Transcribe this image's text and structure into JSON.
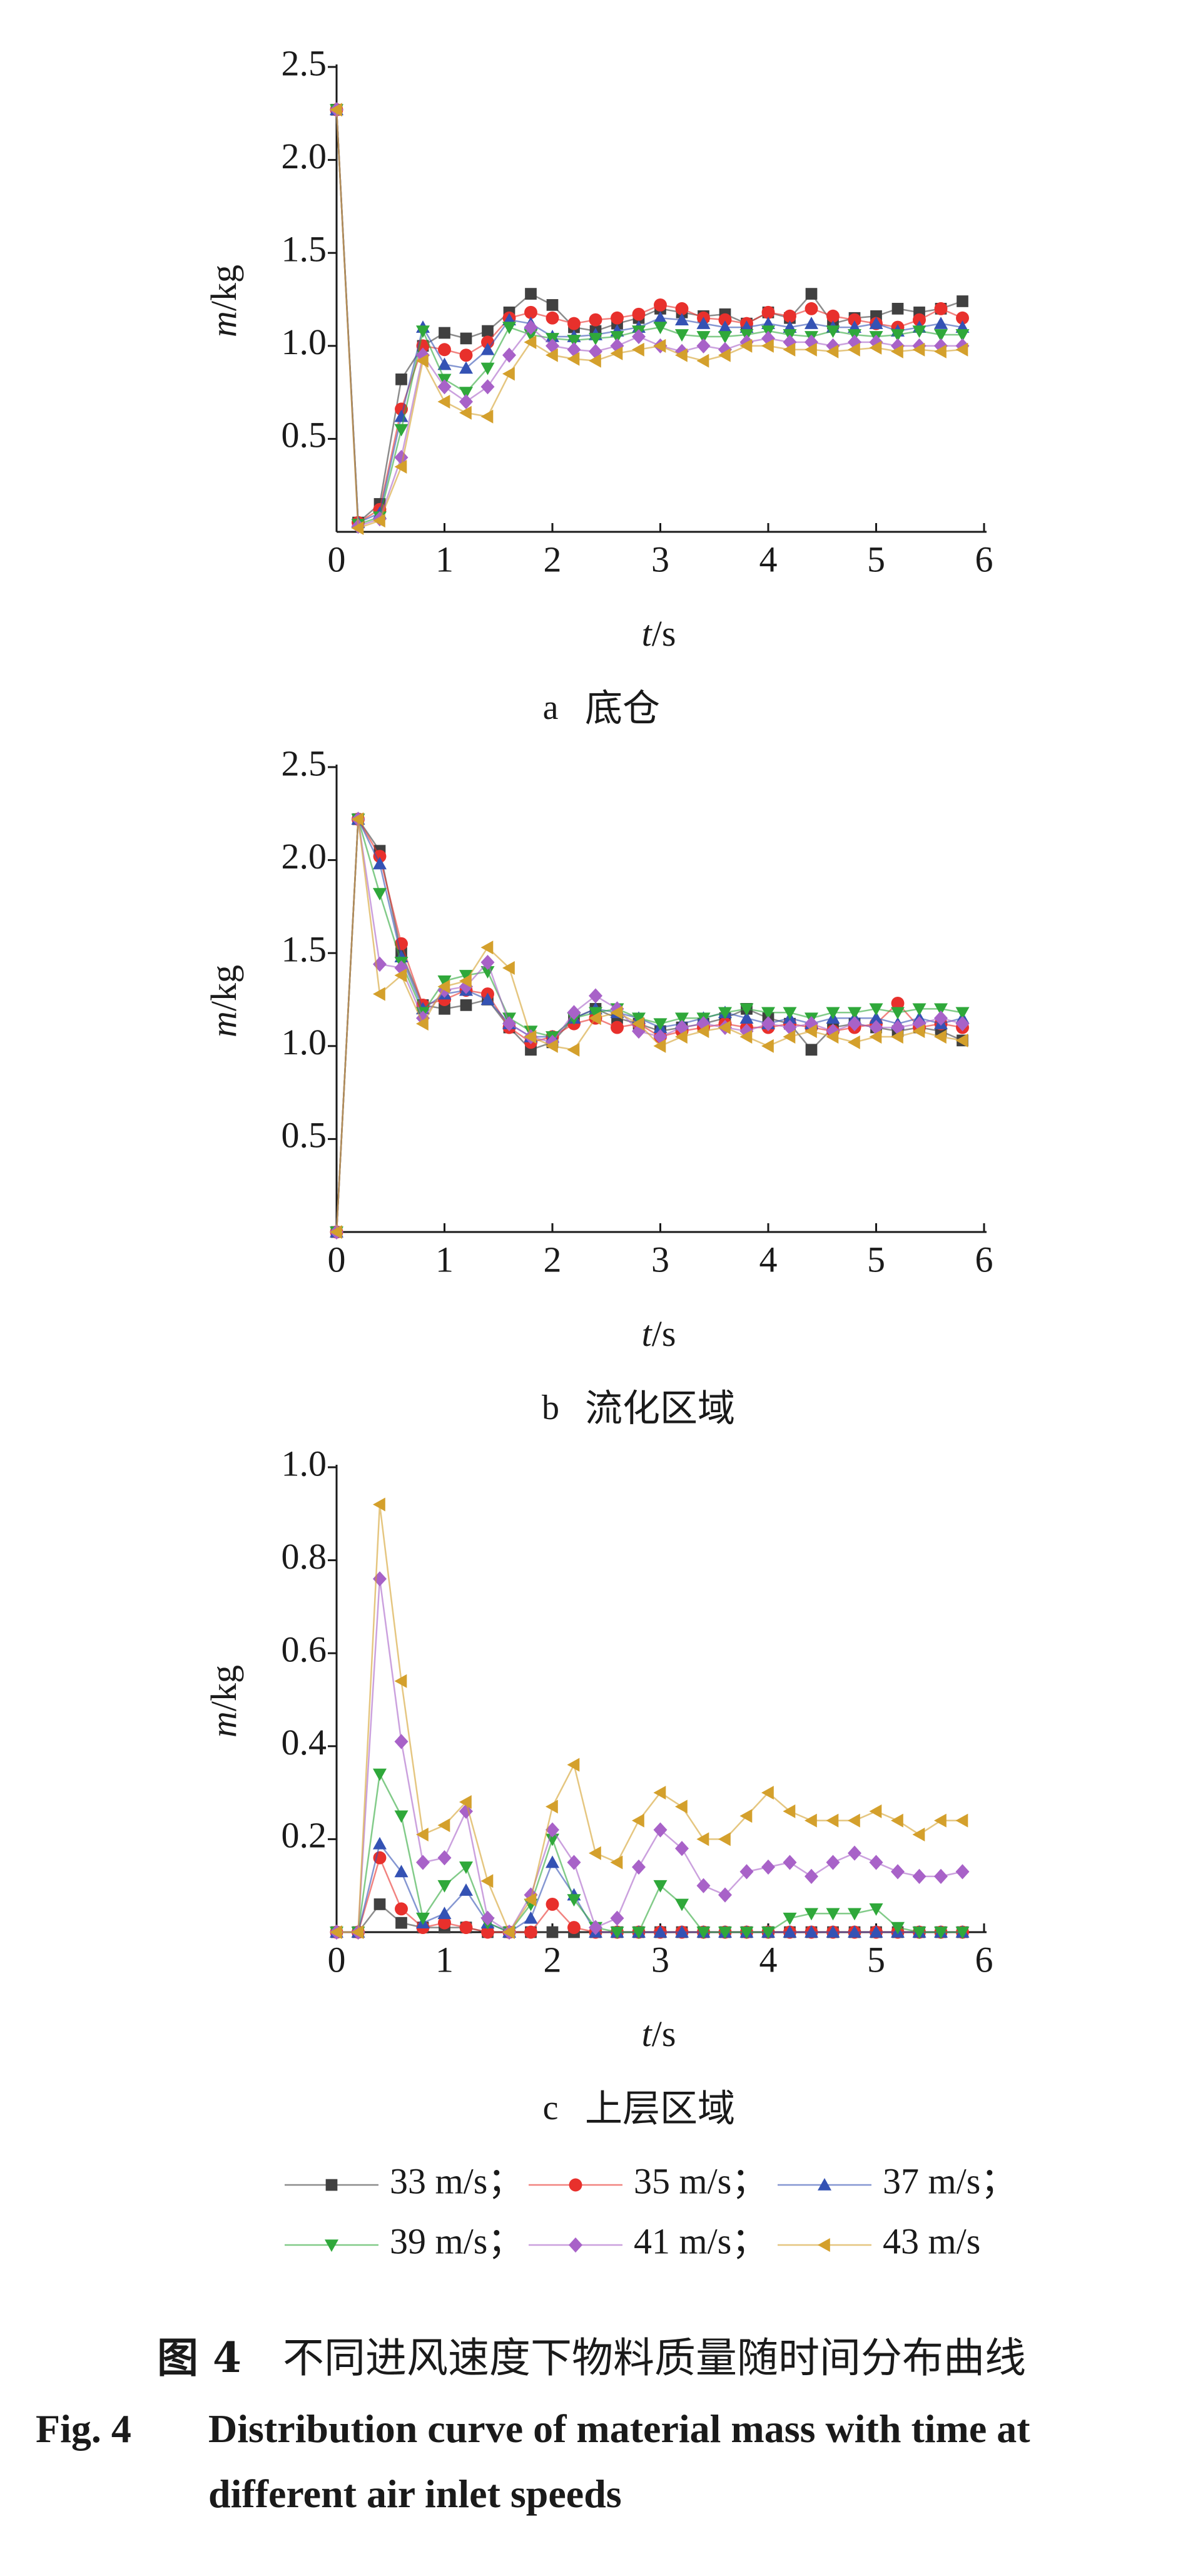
{
  "legend": {
    "separator": "；",
    "items": [
      {
        "name": "33 m/s",
        "color": "#404040",
        "marker": "square"
      },
      {
        "name": "35 m/s",
        "color": "#e8302c",
        "marker": "circle"
      },
      {
        "name": "37 m/s",
        "color": "#3452b4",
        "marker": "triangle-up"
      },
      {
        "name": "39 m/s",
        "color": "#2fa83a",
        "marker": "triangle-down"
      },
      {
        "name": "41 m/s",
        "color": "#a862c8",
        "marker": "diamond"
      },
      {
        "name": "43 m/s",
        "color": "#d4a02c",
        "marker": "triangle-left"
      }
    ]
  },
  "chart_data": [
    {
      "type": "line",
      "label": "a",
      "subtitle": "底仓",
      "xlabel": "t/s",
      "ylabel": "m/kg",
      "x": [
        0,
        0.2,
        0.4,
        0.6,
        0.8,
        1,
        1.2,
        1.4,
        1.6,
        1.8,
        2,
        2.2,
        2.4,
        2.6,
        2.8,
        3,
        3.2,
        3.4,
        3.6,
        3.8,
        4,
        4.2,
        4.4,
        4.6,
        4.8,
        5,
        5.2,
        5.4,
        5.6,
        5.8
      ],
      "xlim": [
        0,
        6
      ],
      "xticks": [
        0,
        1,
        2,
        3,
        4,
        5,
        6
      ],
      "ylim": [
        0,
        2.5
      ],
      "yticks": [
        0.5,
        {
          "value": 1,
          "label": "1.0"
        },
        1.5,
        {
          "value": 2,
          "label": "2.0"
        },
        2.5
      ],
      "series": [
        {
          "values": [
            2.27,
            0.05,
            0.15,
            0.82,
            1.0,
            1.07,
            1.04,
            1.08,
            1.18,
            1.28,
            1.22,
            1.1,
            1.08,
            1.12,
            1.15,
            1.2,
            1.18,
            1.16,
            1.17,
            1.12,
            1.18,
            1.15,
            1.28,
            1.12,
            1.15,
            1.16,
            1.2,
            1.18,
            1.2,
            1.24
          ]
        },
        {
          "values": [
            2.27,
            0.05,
            0.12,
            0.66,
            1.0,
            0.98,
            0.95,
            1.02,
            1.15,
            1.18,
            1.15,
            1.12,
            1.14,
            1.15,
            1.17,
            1.22,
            1.2,
            1.15,
            1.14,
            1.12,
            1.18,
            1.16,
            1.2,
            1.16,
            1.14,
            1.12,
            1.1,
            1.14,
            1.2,
            1.15
          ]
        },
        {
          "values": [
            2.27,
            0.05,
            0.1,
            0.62,
            1.1,
            0.9,
            0.88,
            0.98,
            1.14,
            1.12,
            1.05,
            1.05,
            1.06,
            1.08,
            1.1,
            1.15,
            1.14,
            1.12,
            1.1,
            1.1,
            1.12,
            1.1,
            1.12,
            1.1,
            1.1,
            1.12,
            1.08,
            1.1,
            1.12,
            1.1
          ]
        },
        {
          "values": [
            2.27,
            0.04,
            0.08,
            0.55,
            1.08,
            0.82,
            0.75,
            0.88,
            1.1,
            1.06,
            1.04,
            1.03,
            1.04,
            1.05,
            1.08,
            1.1,
            1.06,
            1.05,
            1.05,
            1.06,
            1.08,
            1.06,
            1.05,
            1.08,
            1.06,
            1.05,
            1.06,
            1.08,
            1.06,
            1.06
          ]
        },
        {
          "values": [
            2.27,
            0.03,
            0.07,
            0.4,
            0.95,
            0.78,
            0.7,
            0.78,
            0.95,
            1.1,
            1.0,
            0.98,
            0.97,
            1.0,
            1.05,
            1.0,
            0.97,
            1.0,
            0.98,
            1.02,
            1.04,
            1.02,
            1.02,
            1.0,
            1.02,
            1.02,
            1.0,
            1.0,
            1.0,
            1.0
          ]
        },
        {
          "values": [
            2.27,
            0.02,
            0.06,
            0.35,
            0.92,
            0.7,
            0.64,
            0.62,
            0.85,
            1.02,
            0.95,
            0.93,
            0.92,
            0.96,
            0.98,
            1.0,
            0.95,
            0.92,
            0.95,
            1.0,
            1.0,
            0.98,
            0.98,
            0.97,
            0.98,
            0.99,
            0.97,
            0.98,
            0.97,
            0.98
          ]
        }
      ]
    },
    {
      "type": "line",
      "label": "b",
      "subtitle": "流化区域",
      "xlabel": "t/s",
      "ylabel": "m/kg",
      "x": [
        0,
        0.2,
        0.4,
        0.6,
        0.8,
        1,
        1.2,
        1.4,
        1.6,
        1.8,
        2,
        2.2,
        2.4,
        2.6,
        2.8,
        3,
        3.2,
        3.4,
        3.6,
        3.8,
        4,
        4.2,
        4.4,
        4.6,
        4.8,
        5,
        5.2,
        5.4,
        5.6,
        5.8
      ],
      "xlim": [
        0,
        6
      ],
      "xticks": [
        0,
        1,
        2,
        3,
        4,
        5,
        6
      ],
      "ylim": [
        0,
        2.5
      ],
      "yticks": [
        0.5,
        {
          "value": 1,
          "label": "1.0"
        },
        1.5,
        {
          "value": 2,
          "label": "2.0"
        },
        2.5
      ],
      "series": [
        {
          "values": [
            0,
            2.22,
            2.05,
            1.5,
            1.22,
            1.2,
            1.22,
            1.25,
            1.1,
            0.98,
            1.02,
            1.15,
            1.2,
            1.15,
            1.12,
            1.08,
            1.1,
            1.12,
            1.15,
            1.2,
            1.15,
            1.12,
            0.98,
            1.1,
            1.12,
            1.1,
            1.08,
            1.1,
            1.08,
            1.03
          ]
        },
        {
          "values": [
            0,
            2.22,
            2.02,
            1.55,
            1.22,
            1.25,
            1.3,
            1.28,
            1.1,
            1.02,
            1.05,
            1.12,
            1.15,
            1.1,
            1.12,
            1.05,
            1.08,
            1.1,
            1.12,
            1.1,
            1.1,
            1.12,
            1.1,
            1.08,
            1.1,
            1.12,
            1.23,
            1.1,
            1.12,
            1.1
          ]
        },
        {
          "values": [
            0,
            2.22,
            1.98,
            1.48,
            1.2,
            1.28,
            1.3,
            1.25,
            1.12,
            1.05,
            1.05,
            1.15,
            1.2,
            1.18,
            1.15,
            1.1,
            1.12,
            1.15,
            1.18,
            1.15,
            1.12,
            1.15,
            1.12,
            1.15,
            1.15,
            1.15,
            1.12,
            1.15,
            1.12,
            1.15
          ]
        },
        {
          "values": [
            0,
            2.22,
            1.82,
            1.45,
            1.18,
            1.35,
            1.38,
            1.4,
            1.15,
            1.08,
            1.05,
            1.15,
            1.18,
            1.2,
            1.15,
            1.12,
            1.15,
            1.15,
            1.18,
            1.2,
            1.18,
            1.18,
            1.15,
            1.18,
            1.18,
            1.2,
            1.18,
            1.2,
            1.2,
            1.18
          ]
        },
        {
          "values": [
            0,
            2.22,
            1.44,
            1.42,
            1.15,
            1.3,
            1.32,
            1.45,
            1.12,
            1.05,
            1.02,
            1.18,
            1.27,
            1.2,
            1.08,
            1.05,
            1.1,
            1.12,
            1.1,
            1.08,
            1.12,
            1.1,
            1.12,
            1.08,
            1.12,
            1.1,
            1.1,
            1.12,
            1.15,
            1.12
          ]
        },
        {
          "values": [
            0,
            2.22,
            1.28,
            1.38,
            1.12,
            1.32,
            1.35,
            1.53,
            1.42,
            1.05,
            1.0,
            0.98,
            1.15,
            1.18,
            1.12,
            1.0,
            1.05,
            1.08,
            1.1,
            1.05,
            1.0,
            1.05,
            1.08,
            1.05,
            1.02,
            1.05,
            1.05,
            1.08,
            1.05,
            1.03
          ]
        }
      ]
    },
    {
      "type": "line",
      "label": "c",
      "subtitle": "上层区域",
      "xlabel": "t/s",
      "ylabel": "m/kg",
      "x": [
        0,
        0.2,
        0.4,
        0.6,
        0.8,
        1,
        1.2,
        1.4,
        1.6,
        1.8,
        2,
        2.2,
        2.4,
        2.6,
        2.8,
        3,
        3.2,
        3.4,
        3.6,
        3.8,
        4,
        4.2,
        4.4,
        4.6,
        4.8,
        5,
        5.2,
        5.4,
        5.6,
        5.8
      ],
      "xlim": [
        0,
        6
      ],
      "xticks": [
        0,
        1,
        2,
        3,
        4,
        5,
        6
      ],
      "ylim": [
        0,
        1
      ],
      "yticks": [
        0.2,
        0.4,
        0.6,
        0.8,
        {
          "value": 1,
          "label": "1.0"
        }
      ],
      "series": [
        {
          "values": [
            0,
            0,
            0.06,
            0.02,
            0.01,
            0.01,
            0.01,
            0,
            0,
            0,
            0,
            0,
            0,
            0,
            0,
            0,
            0,
            0,
            0,
            0,
            0,
            0,
            0,
            0,
            0,
            0,
            0,
            0,
            0,
            0
          ]
        },
        {
          "values": [
            0,
            0,
            0.16,
            0.05,
            0.01,
            0.02,
            0.01,
            0,
            0,
            0,
            0.06,
            0.01,
            0,
            0,
            0,
            0,
            0,
            0,
            0,
            0,
            0,
            0,
            0,
            0,
            0,
            0,
            0,
            0,
            0,
            0
          ]
        },
        {
          "values": [
            0,
            0,
            0.19,
            0.13,
            0.02,
            0.04,
            0.09,
            0.02,
            0,
            0.03,
            0.15,
            0.08,
            0,
            0,
            0,
            0,
            0,
            0,
            0,
            0,
            0,
            0,
            0,
            0,
            0,
            0,
            0,
            0,
            0,
            0
          ]
        },
        {
          "values": [
            0,
            0,
            0.34,
            0.25,
            0.03,
            0.1,
            0.14,
            0.02,
            0,
            0.06,
            0.2,
            0.07,
            0.01,
            0,
            0,
            0.1,
            0.06,
            0,
            0,
            0,
            0,
            0.03,
            0.04,
            0.04,
            0.04,
            0.05,
            0.01,
            0,
            0,
            0
          ]
        },
        {
          "values": [
            0,
            0,
            0.76,
            0.41,
            0.15,
            0.16,
            0.26,
            0.03,
            0,
            0.08,
            0.22,
            0.15,
            0.01,
            0.03,
            0.14,
            0.22,
            0.18,
            0.1,
            0.08,
            0.13,
            0.14,
            0.15,
            0.12,
            0.15,
            0.17,
            0.15,
            0.13,
            0.12,
            0.12,
            0.13
          ]
        },
        {
          "values": [
            0,
            0,
            0.92,
            0.54,
            0.21,
            0.23,
            0.28,
            0.11,
            0,
            0.07,
            0.27,
            0.36,
            0.17,
            0.15,
            0.24,
            0.3,
            0.27,
            0.2,
            0.2,
            0.25,
            0.3,
            0.26,
            0.24,
            0.24,
            0.24,
            0.26,
            0.24,
            0.21,
            0.24,
            0.24
          ]
        }
      ]
    }
  ],
  "caption": {
    "zh_label": "图 4",
    "zh_text": "不同进风速度下物料质量随时间分布曲线",
    "en_label": "Fig. 4",
    "en_text": "Distribution curve of material mass with time at different air inlet speeds"
  }
}
